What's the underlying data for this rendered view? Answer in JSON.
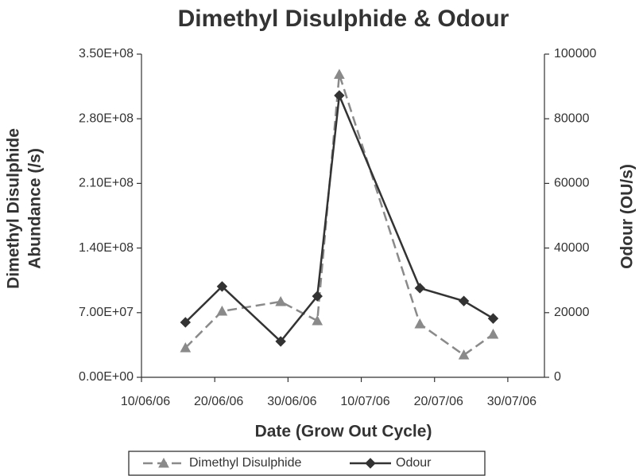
{
  "chart_data": {
    "type": "line",
    "title": "Dimethyl Disulphide & Odour",
    "x_label": "Date (Grow Out Cycle)",
    "y_label": [
      "Dimethyl Disulphide",
      "Abundance (/s)"
    ],
    "y2_label": "Odour (OU/s)",
    "x": [
      "16/06/06",
      "21/06/06",
      "29/06/06",
      "04/07/06",
      "07/07/06",
      "18/07/06",
      "24/07/06",
      "28/07/06"
    ],
    "xlim": [
      "10/06/06",
      "04/08/06"
    ],
    "xticks": [
      "10/06/06",
      "20/06/06",
      "30/06/06",
      "10/07/06",
      "20/07/06",
      "30/07/06"
    ],
    "ylim": [
      0,
      350000000
    ],
    "yticks": [
      {
        "value": 0,
        "label": "0.00E+00"
      },
      {
        "value": 70000000,
        "label": "7.00E+07"
      },
      {
        "value": 140000000,
        "label": "1.40E+08"
      },
      {
        "value": 210000000,
        "label": "2.10E+08"
      },
      {
        "value": 280000000,
        "label": "2.80E+08"
      },
      {
        "value": 350000000,
        "label": "3.50E+08"
      }
    ],
    "y2lim": [
      0,
      100000
    ],
    "y2ticks": [
      0,
      20000,
      40000,
      60000,
      80000,
      100000
    ],
    "grid": false,
    "legend": "bottom",
    "series": [
      {
        "name": "Dimethyl Disulphide",
        "color": "#8a8a8a",
        "marker": "triangle",
        "dash": true,
        "values": [
          31900000,
          71600000,
          81900000,
          61200000,
          328000000,
          57800000,
          24100000,
          46600000
        ]
      },
      {
        "name": "Odour",
        "color": "#333333",
        "marker": "diamond",
        "dash": false,
        "axis": "y2",
        "values": [
          17000,
          28100,
          11100,
          25100,
          87200,
          27600,
          23600,
          18200
        ]
      }
    ]
  }
}
